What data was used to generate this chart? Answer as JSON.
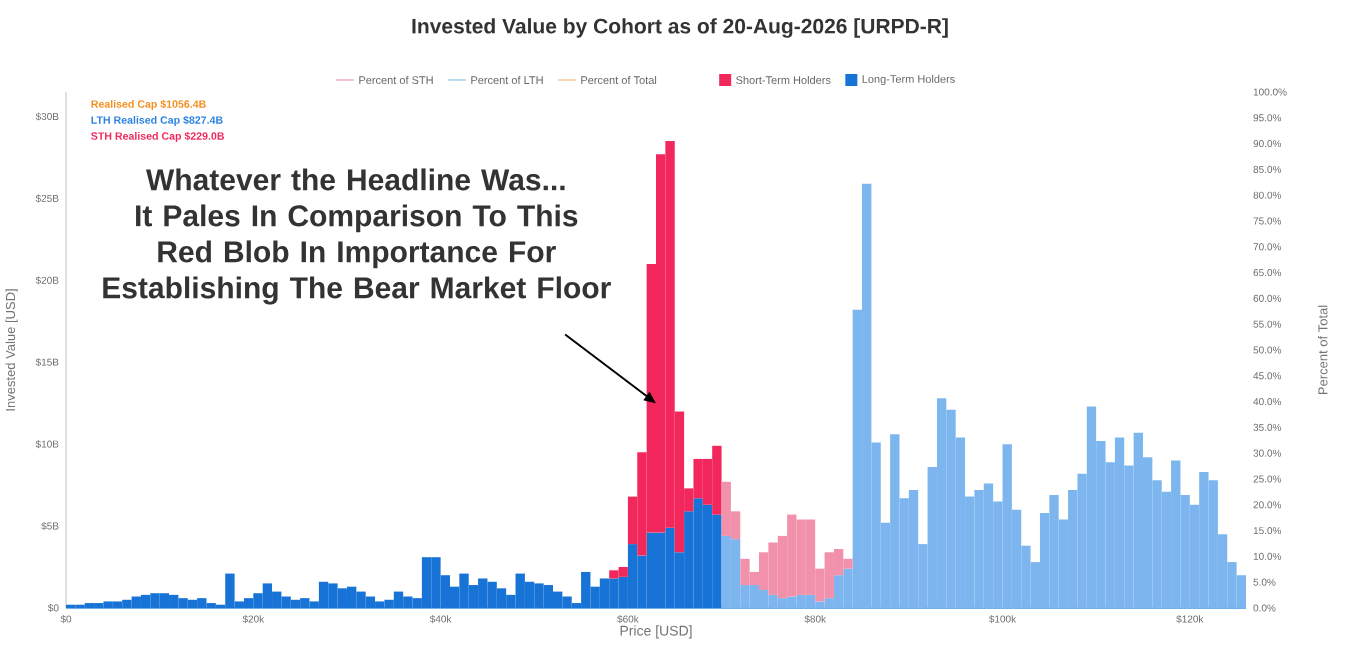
{
  "chart_data": {
    "type": "bar",
    "stacked": true,
    "title": "Invested Value by Cohort as of 20-Aug-2026 [URPD-R]",
    "xlabel": "Price [USD]",
    "ylabel": "Invested Value [USD]",
    "y2label": "Percent of Total",
    "legend": "top",
    "xlim": [
      0,
      126000
    ],
    "xticks": [
      {
        "value": 0,
        "label": "$0"
      },
      {
        "value": 20000,
        "label": "$20k"
      },
      {
        "value": 40000,
        "label": "$40k"
      },
      {
        "value": 60000,
        "label": "$60k"
      },
      {
        "value": 80000,
        "label": "$80k"
      },
      {
        "value": 100000,
        "label": "$100k"
      },
      {
        "value": 120000,
        "label": "$120k"
      }
    ],
    "ylim": [
      0,
      31.5
    ],
    "yticks": [
      {
        "value": 0,
        "label": "$0"
      },
      {
        "value": 5,
        "label": "$5B"
      },
      {
        "value": 10,
        "label": "$10B"
      },
      {
        "value": 15,
        "label": "$15B"
      },
      {
        "value": 20,
        "label": "$20B"
      },
      {
        "value": 25,
        "label": "$25B"
      },
      {
        "value": 30,
        "label": "$30B"
      }
    ],
    "y2lim": [
      0,
      100
    ],
    "y2ticks": [
      {
        "value": 0,
        "label": "0.0%"
      },
      {
        "value": 5,
        "label": "5.0%"
      },
      {
        "value": 10,
        "label": "10.0%"
      },
      {
        "value": 15,
        "label": "15.0%"
      },
      {
        "value": 20,
        "label": "20.0%"
      },
      {
        "value": 25,
        "label": "25.0%"
      },
      {
        "value": 30,
        "label": "30.0%"
      },
      {
        "value": 35,
        "label": "35.0%"
      },
      {
        "value": 40,
        "label": "40.0%"
      },
      {
        "value": 45,
        "label": "45.0%"
      },
      {
        "value": 50,
        "label": "50.0%"
      },
      {
        "value": 55,
        "label": "55.0%"
      },
      {
        "value": 60,
        "label": "60.0%"
      },
      {
        "value": 65,
        "label": "65.0%"
      },
      {
        "value": 70,
        "label": "70.0%"
      },
      {
        "value": 75,
        "label": "75.0%"
      },
      {
        "value": 80,
        "label": "80.0%"
      },
      {
        "value": 85,
        "label": "85.0%"
      },
      {
        "value": 90,
        "label": "90.0%"
      },
      {
        "value": 95,
        "label": "95.0%"
      },
      {
        "value": 100,
        "label": "100.0%"
      }
    ],
    "annotations": [
      "Realised Cap $1056.4B",
      "LTH Realised Cap $827.4B",
      "STH Realised Cap $229.0B",
      {
        "text": "Whatever the Headline Was... It Pales In Comparison To This Red Blob In Importance For Establishing The Bear Market Floor",
        "x": 63000,
        "y": 12.5
      }
    ],
    "x": [
      500,
      1500,
      2500,
      3500,
      4500,
      5500,
      6500,
      7500,
      8500,
      9500,
      10500,
      11500,
      12500,
      13500,
      14500,
      15500,
      16500,
      17500,
      18500,
      19500,
      20500,
      21500,
      22500,
      23500,
      24500,
      25500,
      26500,
      27500,
      28500,
      29500,
      30500,
      31500,
      32500,
      33500,
      34500,
      35500,
      36500,
      37500,
      38500,
      39500,
      40500,
      41500,
      42500,
      43500,
      44500,
      45500,
      46500,
      47500,
      48500,
      49500,
      50500,
      51500,
      52500,
      53500,
      54500,
      55500,
      56500,
      57500,
      58500,
      59500,
      60500,
      61500,
      62500,
      63500,
      64500,
      65500,
      66500,
      67500,
      68500,
      69500,
      70500,
      71500,
      72500,
      73500,
      74500,
      75500,
      76500,
      77500,
      78500,
      79500,
      80500,
      81500,
      82500,
      83500,
      84500,
      85500,
      86500,
      87500,
      88500,
      89500,
      90500,
      91500,
      92500,
      93500,
      94500,
      95500,
      96500,
      97500,
      98500,
      99500,
      100500,
      101500,
      102500,
      103500,
      104500,
      105500,
      106500,
      107500,
      108500,
      109500,
      110500,
      111500,
      112500,
      113500,
      114500,
      115500,
      116500,
      117500,
      118500,
      119500,
      120500,
      121500,
      122500,
      123500,
      124500,
      125500
    ],
    "series": [
      {
        "type": "line",
        "name": "Percent of STH",
        "color": "#f4b3c0",
        "values": [
          null,
          null,
          null,
          null,
          null,
          null,
          null,
          null,
          null,
          null,
          null,
          null,
          null,
          null,
          null,
          null,
          null,
          null,
          null,
          null,
          null,
          null,
          null,
          null,
          null,
          null,
          null,
          null,
          null,
          null,
          null,
          null,
          null,
          null,
          null,
          null,
          null,
          null,
          null,
          null,
          null,
          null,
          null,
          null,
          null,
          null,
          null,
          null,
          null,
          null,
          null,
          null,
          null,
          null,
          null,
          null,
          null,
          null,
          null,
          null,
          null,
          null,
          null,
          null,
          null,
          null,
          null,
          null,
          null,
          null,
          null,
          null,
          null,
          null,
          null,
          null,
          null,
          null,
          null,
          null,
          null,
          null,
          null,
          null,
          null,
          null,
          null,
          null,
          null,
          null,
          null,
          null,
          null,
          null,
          null,
          null,
          null,
          null,
          null,
          null,
          null,
          null,
          null,
          null,
          null,
          null,
          null,
          null,
          null,
          null,
          null,
          null,
          null,
          null,
          null,
          null,
          null,
          null,
          null,
          null,
          null,
          null,
          null,
          null,
          null,
          null
        ]
      },
      {
        "type": "line",
        "name": "Percent of LTH",
        "color": "#a9d3ee",
        "values": [
          null,
          null,
          null,
          null,
          null,
          null,
          null,
          null,
          null,
          null,
          null,
          null,
          null,
          null,
          null,
          null,
          null,
          null,
          null,
          null,
          null,
          null,
          null,
          null,
          null,
          null,
          null,
          null,
          null,
          null,
          null,
          null,
          null,
          null,
          null,
          null,
          null,
          null,
          null,
          null,
          null,
          null,
          null,
          null,
          null,
          null,
          null,
          null,
          null,
          null,
          null,
          null,
          null,
          null,
          null,
          null,
          null,
          null,
          null,
          null,
          null,
          null,
          null,
          null,
          null,
          null,
          null,
          null,
          null,
          null,
          null,
          null,
          null,
          null,
          null,
          null,
          null,
          null,
          null,
          null,
          null,
          null,
          null,
          null,
          null,
          null,
          null,
          null,
          null,
          null,
          null,
          null,
          null,
          null,
          null,
          null,
          null,
          null,
          null,
          null,
          null,
          null,
          null,
          null,
          null,
          null,
          null,
          null,
          null,
          null,
          null,
          null,
          null,
          null,
          null,
          null,
          null,
          null,
          null,
          null,
          null,
          null,
          null,
          null,
          null,
          null
        ]
      },
      {
        "type": "line",
        "name": "Percent of Total",
        "color": "#f8cfa0",
        "values": [
          null,
          null,
          null,
          null,
          null,
          null,
          null,
          null,
          null,
          null,
          null,
          null,
          null,
          null,
          null,
          null,
          null,
          null,
          null,
          null,
          null,
          null,
          null,
          null,
          null,
          null,
          null,
          null,
          null,
          null,
          null,
          null,
          null,
          null,
          null,
          null,
          null,
          null,
          null,
          null,
          null,
          null,
          null,
          null,
          null,
          null,
          null,
          null,
          null,
          null,
          null,
          null,
          null,
          null,
          null,
          null,
          null,
          null,
          null,
          null,
          null,
          null,
          null,
          null,
          null,
          null,
          null,
          null,
          null,
          null,
          null,
          null,
          null,
          null,
          null,
          null,
          null,
          null,
          null,
          null,
          null,
          null,
          null,
          null,
          null,
          null,
          null,
          null,
          null,
          null,
          null,
          null,
          null,
          null,
          null,
          null,
          null,
          null,
          null,
          null,
          null,
          null,
          null,
          null,
          null,
          null,
          null,
          null,
          null,
          null,
          null,
          null,
          null,
          null,
          null,
          null,
          null,
          null,
          null,
          null,
          null,
          null,
          null,
          null,
          null,
          null
        ]
      },
      {
        "name": "Long-Term Holders",
        "color": "#1773d5",
        "values": [
          0.2,
          0.2,
          0.3,
          0.3,
          0.4,
          0.4,
          0.5,
          0.7,
          0.8,
          0.9,
          0.9,
          0.8,
          0.6,
          0.5,
          0.6,
          0.3,
          0.2,
          2.1,
          0.4,
          0.6,
          0.9,
          1.5,
          1.0,
          0.7,
          0.5,
          0.6,
          0.4,
          1.6,
          1.5,
          1.2,
          1.3,
          1.0,
          0.7,
          0.4,
          0.5,
          1.0,
          0.7,
          0.6,
          3.1,
          3.1,
          2.0,
          1.3,
          2.1,
          1.4,
          1.8,
          1.6,
          1.2,
          0.8,
          2.1,
          1.6,
          1.5,
          1.4,
          1.0,
          0.7,
          0.3,
          2.2,
          1.3,
          1.8,
          1.8,
          1.9,
          3.9,
          3.2,
          4.6,
          4.6,
          4.9,
          3.4,
          5.9,
          6.7,
          6.3,
          5.7,
          4.4,
          4.2,
          1.4,
          1.4,
          1.1,
          0.8,
          0.6,
          0.7,
          0.8,
          0.8,
          0.4,
          0.6,
          2.0,
          2.4,
          18.2,
          25.9,
          10.1,
          5.2,
          10.6,
          6.7,
          7.2,
          3.9,
          8.6,
          12.8,
          12.1,
          10.4,
          6.8,
          7.2,
          7.6,
          6.5,
          10.0,
          6.0,
          3.8,
          2.8,
          5.8,
          6.9,
          5.4,
          7.2,
          8.2,
          12.3,
          10.2,
          8.9,
          10.4,
          8.7,
          10.7,
          9.2,
          7.8,
          7.1,
          9.0,
          6.9,
          6.3,
          8.3,
          7.8,
          4.5,
          2.8,
          2.0
        ],
        "colors": [
          "#1773d5",
          "#1773d5",
          "#1773d5",
          "#1773d5",
          "#1773d5",
          "#1773d5",
          "#1773d5",
          "#1773d5",
          "#1773d5",
          "#1773d5",
          "#1773d5",
          "#1773d5",
          "#1773d5",
          "#1773d5",
          "#1773d5",
          "#1773d5",
          "#1773d5",
          "#1773d5",
          "#1773d5",
          "#1773d5",
          "#1773d5",
          "#1773d5",
          "#1773d5",
          "#1773d5",
          "#1773d5",
          "#1773d5",
          "#1773d5",
          "#1773d5",
          "#1773d5",
          "#1773d5",
          "#1773d5",
          "#1773d5",
          "#1773d5",
          "#1773d5",
          "#1773d5",
          "#1773d5",
          "#1773d5",
          "#1773d5",
          "#1773d5",
          "#1773d5",
          "#1773d5",
          "#1773d5",
          "#1773d5",
          "#1773d5",
          "#1773d5",
          "#1773d5",
          "#1773d5",
          "#1773d5",
          "#1773d5",
          "#1773d5",
          "#1773d5",
          "#1773d5",
          "#1773d5",
          "#1773d5",
          "#1773d5",
          "#1773d5",
          "#1773d5",
          "#1773d5",
          "#1773d5",
          "#1773d5",
          "#1773d5",
          "#1773d5",
          "#1773d5",
          "#1773d5",
          "#1773d5",
          "#1773d5",
          "#1773d5",
          "#1773d5",
          "#1773d5",
          "#1773d5",
          "#7db6ee",
          "#7db6ee",
          "#7db6ee",
          "#7db6ee",
          "#7db6ee",
          "#7db6ee",
          "#7db6ee",
          "#7db6ee",
          "#7db6ee",
          "#7db6ee",
          "#7db6ee",
          "#7db6ee",
          "#7db6ee",
          "#7db6ee",
          "#7db6ee",
          "#7db6ee",
          "#7db6ee",
          "#7db6ee",
          "#7db6ee",
          "#7db6ee",
          "#7db6ee",
          "#7db6ee",
          "#7db6ee",
          "#7db6ee",
          "#7db6ee",
          "#7db6ee",
          "#7db6ee",
          "#7db6ee",
          "#7db6ee",
          "#7db6ee",
          "#7db6ee",
          "#7db6ee",
          "#7db6ee",
          "#7db6ee",
          "#7db6ee",
          "#7db6ee",
          "#7db6ee",
          "#7db6ee",
          "#7db6ee",
          "#7db6ee",
          "#7db6ee",
          "#7db6ee",
          "#7db6ee",
          "#7db6ee",
          "#7db6ee",
          "#7db6ee",
          "#7db6ee",
          "#7db6ee",
          "#7db6ee",
          "#7db6ee",
          "#7db6ee",
          "#7db6ee",
          "#7db6ee",
          "#7db6ee",
          "#7db6ee",
          "#7db6ee"
        ]
      },
      {
        "name": "Short-Term Holders",
        "color": "#f2275c",
        "values": [
          null,
          null,
          null,
          null,
          null,
          null,
          null,
          null,
          null,
          null,
          null,
          null,
          null,
          null,
          null,
          null,
          null,
          null,
          null,
          null,
          null,
          null,
          null,
          null,
          null,
          null,
          null,
          null,
          null,
          null,
          null,
          null,
          null,
          null,
          null,
          null,
          null,
          null,
          null,
          null,
          null,
          null,
          null,
          null,
          null,
          null,
          null,
          null,
          null,
          null,
          null,
          null,
          null,
          null,
          null,
          null,
          null,
          null,
          0.5,
          0.6,
          2.9,
          6.3,
          16.4,
          23.1,
          23.6,
          8.6,
          1.4,
          2.4,
          2.8,
          4.2,
          3.3,
          1.7,
          1.6,
          0.8,
          2.3,
          3.2,
          3.8,
          5.0,
          4.6,
          4.6,
          2.0,
          2.8,
          1.6,
          0.6,
          null,
          null,
          null,
          null,
          null,
          null,
          null,
          null,
          null,
          null,
          null,
          null,
          null,
          null,
          null,
          null,
          null,
          null,
          null,
          null,
          null,
          null,
          null,
          null,
          null,
          null,
          null,
          null,
          null,
          null,
          null,
          null,
          null,
          null,
          null,
          null,
          null,
          null,
          null,
          null,
          null,
          null
        ],
        "colors": [
          "#f2275c",
          "#f2275c",
          "#f2275c",
          "#f2275c",
          "#f2275c",
          "#f2275c",
          "#f2275c",
          "#f2275c",
          "#f2275c",
          "#f2275c",
          "#f2275c",
          "#f2275c",
          "#f2275c",
          "#f2275c",
          "#f2275c",
          "#f2275c",
          "#f2275c",
          "#f2275c",
          "#f2275c",
          "#f2275c",
          "#f2275c",
          "#f2275c",
          "#f2275c",
          "#f2275c",
          "#f2275c",
          "#f2275c",
          "#f2275c",
          "#f2275c",
          "#f2275c",
          "#f2275c",
          "#f2275c",
          "#f2275c",
          "#f2275c",
          "#f2275c",
          "#f2275c",
          "#f2275c",
          "#f2275c",
          "#f2275c",
          "#f2275c",
          "#f2275c",
          "#f2275c",
          "#f2275c",
          "#f2275c",
          "#f2275c",
          "#f2275c",
          "#f2275c",
          "#f2275c",
          "#f2275c",
          "#f2275c",
          "#f2275c",
          "#f2275c",
          "#f2275c",
          "#f2275c",
          "#f2275c",
          "#f2275c",
          "#f2275c",
          "#f2275c",
          "#f2275c",
          "#f2275c",
          "#f2275c",
          "#f2275c",
          "#f2275c",
          "#f2275c",
          "#f2275c",
          "#f2275c",
          "#f2275c",
          "#f2275c",
          "#f2275c",
          "#f2275c",
          "#f2275c",
          "#f291ab",
          "#f291ab",
          "#f291ab",
          "#f291ab",
          "#f291ab",
          "#f291ab",
          "#f291ab",
          "#f291ab",
          "#f291ab",
          "#f291ab",
          "#f291ab",
          "#f291ab",
          "#f291ab",
          "#f291ab",
          "#f291ab",
          "#f291ab",
          "#f291ab",
          "#f291ab",
          "#f291ab",
          "#f291ab",
          "#f291ab",
          "#f291ab",
          "#f291ab",
          "#f291ab",
          "#f291ab",
          "#f291ab",
          "#f291ab",
          "#f291ab",
          "#f291ab",
          "#f291ab",
          "#f291ab",
          "#f291ab",
          "#f291ab",
          "#f291ab",
          "#f291ab",
          "#f291ab",
          "#f291ab",
          "#f291ab",
          "#f291ab",
          "#f291ab",
          "#f291ab",
          "#f291ab",
          "#f291ab",
          "#f291ab",
          "#f291ab",
          "#f291ab",
          "#f291ab",
          "#f291ab",
          "#f291ab",
          "#f291ab",
          "#f291ab",
          "#f291ab",
          "#f291ab",
          "#f291ab",
          "#f291ab",
          "#f291ab"
        ]
      }
    ]
  }
}
